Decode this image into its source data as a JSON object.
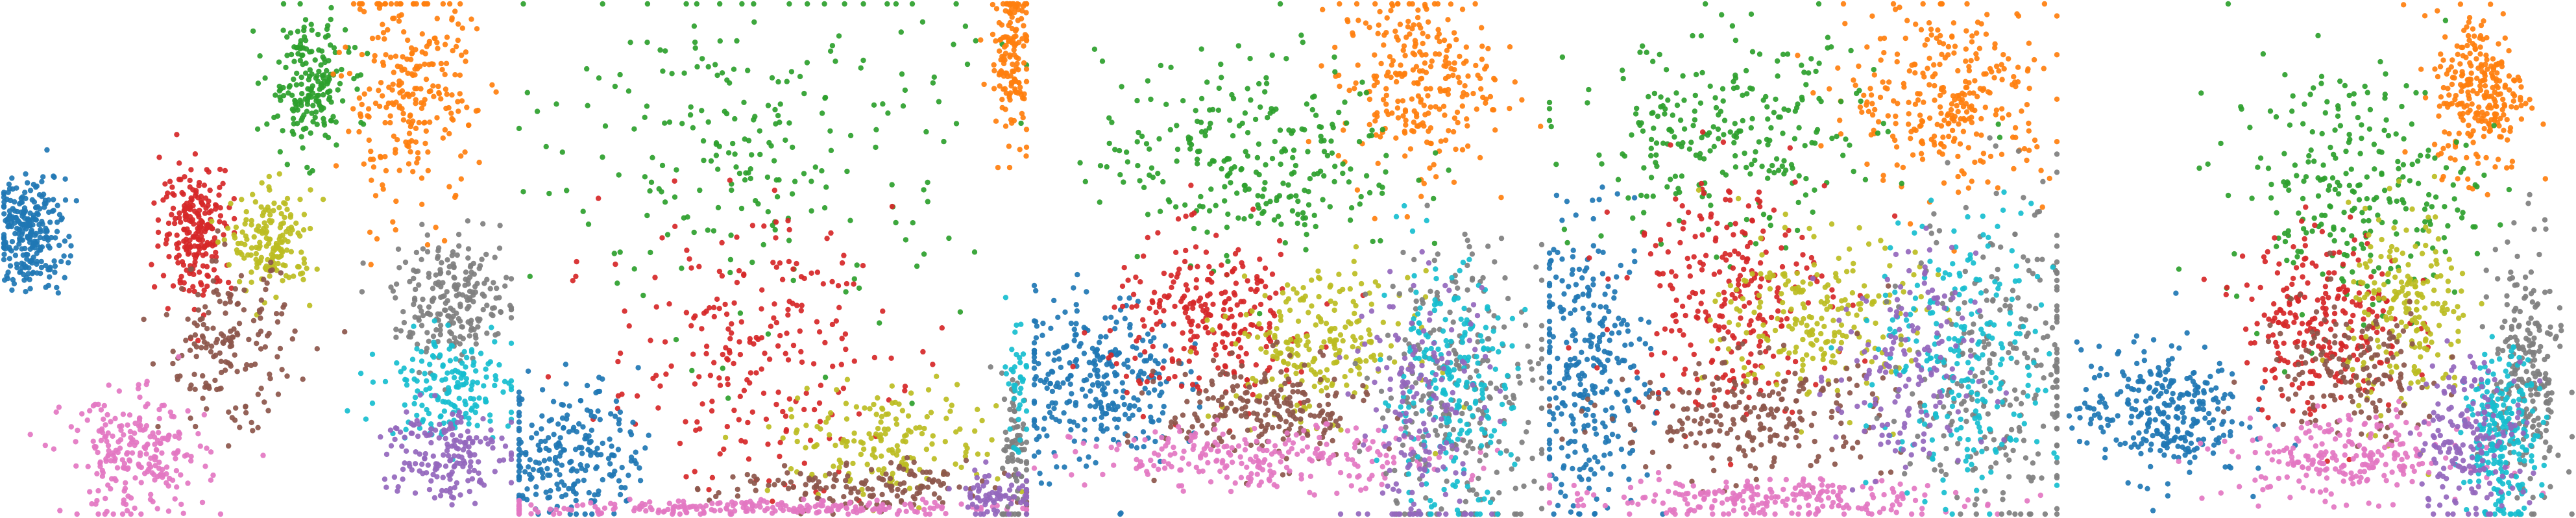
{
  "palette": {
    "blue": "#1f77b4",
    "orange": "#ff7f0e",
    "green": "#2ca02c",
    "red": "#d62728",
    "purple": "#9467bd",
    "brown": "#8c564b",
    "pink": "#e377c2",
    "gray": "#7f7f7f",
    "olive": "#bcbd22",
    "cyan": "#17becf"
  },
  "chart_data": [
    {
      "type": "scatter",
      "title": "",
      "xlabel": "",
      "ylabel": "",
      "grid": false,
      "axes": "hidden",
      "xlim": [
        0,
        100
      ],
      "ylim": [
        0,
        100
      ],
      "clusters": [
        {
          "color": "blue",
          "center": [
            5,
            55
          ],
          "spread": [
            3.5,
            5.5
          ],
          "n": 260
        },
        {
          "color": "green",
          "center": [
            60,
            84
          ],
          "spread": [
            4.0,
            6.5
          ],
          "n": 200
        },
        {
          "color": "orange",
          "center": [
            80,
            82
          ],
          "spread": [
            6.5,
            11.0
          ],
          "n": 260
        },
        {
          "color": "red",
          "center": [
            38,
            56
          ],
          "spread": [
            3.5,
            6.5
          ],
          "n": 230
        },
        {
          "color": "olive",
          "center": [
            53,
            53
          ],
          "spread": [
            4.0,
            5.0
          ],
          "n": 170
        },
        {
          "color": "brown",
          "center": [
            44,
            33
          ],
          "spread": [
            6.5,
            8.0
          ],
          "n": 170
        },
        {
          "color": "pink",
          "center": [
            26,
            11
          ],
          "spread": [
            7.0,
            6.0
          ],
          "n": 240
        },
        {
          "color": "gray",
          "center": [
            89,
            42
          ],
          "spread": [
            6.0,
            6.0
          ],
          "n": 220
        },
        {
          "color": "cyan",
          "center": [
            88,
            25
          ],
          "spread": [
            6.5,
            5.0
          ],
          "n": 170
        },
        {
          "color": "purple",
          "center": [
            86,
            12
          ],
          "spread": [
            6.0,
            5.0
          ],
          "n": 170
        }
      ]
    },
    {
      "type": "scatter",
      "title": "",
      "xlabel": "",
      "ylabel": "",
      "grid": false,
      "axes": "hidden",
      "xlim": [
        0,
        100
      ],
      "ylim": [
        0,
        100
      ],
      "clusters": [
        {
          "color": "green",
          "center": [
            48,
            72
          ],
          "spread": [
            20.0,
            18.0
          ],
          "n": 240
        },
        {
          "color": "orange",
          "center": [
            97,
            90
          ],
          "spread": [
            2.0,
            8.0
          ],
          "n": 150
        },
        {
          "color": "red",
          "center": [
            45,
            32
          ],
          "spread": [
            14.0,
            13.0
          ],
          "n": 230
        },
        {
          "color": "blue",
          "center": [
            10,
            12
          ],
          "spread": [
            7.0,
            7.0
          ],
          "n": 230
        },
        {
          "color": "olive",
          "center": [
            73,
            14
          ],
          "spread": [
            11.0,
            5.5
          ],
          "n": 170
        },
        {
          "color": "brown",
          "center": [
            68,
            5
          ],
          "spread": [
            14.0,
            2.5
          ],
          "n": 150
        },
        {
          "color": "pink",
          "center": [
            45,
            1.2
          ],
          "spread": [
            26.0,
            0.8
          ],
          "n": 230
        },
        {
          "color": "gray",
          "center": [
            98,
            12
          ],
          "spread": [
            1.5,
            8.0
          ],
          "n": 80
        },
        {
          "color": "purple",
          "center": [
            94,
            4
          ],
          "spread": [
            4.0,
            2.5
          ],
          "n": 70
        },
        {
          "color": "cyan",
          "center": [
            98,
            25
          ],
          "spread": [
            1.5,
            8.0
          ],
          "n": 40
        }
      ]
    },
    {
      "type": "scatter",
      "title": "",
      "xlabel": "",
      "ylabel": "",
      "grid": false,
      "axes": "hidden",
      "xlim": [
        0,
        100
      ],
      "ylim": [
        0,
        100
      ],
      "clusters": [
        {
          "color": "orange",
          "center": [
            75,
            85
          ],
          "spread": [
            7.5,
            9.0
          ],
          "n": 270
        },
        {
          "color": "green",
          "center": [
            43,
            70
          ],
          "spread": [
            15.0,
            10.0
          ],
          "n": 270
        },
        {
          "color": "blue",
          "center": [
            12,
            26
          ],
          "spread": [
            8.0,
            8.5
          ],
          "n": 290
        },
        {
          "color": "red",
          "center": [
            35,
            38
          ],
          "spread": [
            10.0,
            8.0
          ],
          "n": 260
        },
        {
          "color": "olive",
          "center": [
            56,
            33
          ],
          "spread": [
            9.0,
            7.0
          ],
          "n": 220
        },
        {
          "color": "brown",
          "center": [
            46,
            20
          ],
          "spread": [
            10.0,
            5.0
          ],
          "n": 210
        },
        {
          "color": "pink",
          "center": [
            45,
            11
          ],
          "spread": [
            18.0,
            3.0
          ],
          "n": 240
        },
        {
          "color": "gray",
          "center": [
            85,
            25
          ],
          "spread": [
            9.0,
            15.0
          ],
          "n": 260
        },
        {
          "color": "cyan",
          "center": [
            81,
            24
          ],
          "spread": [
            6.5,
            12.0
          ],
          "n": 230
        },
        {
          "color": "purple",
          "center": [
            77,
            20
          ],
          "spread": [
            7.0,
            14.0
          ],
          "n": 170
        }
      ]
    },
    {
      "type": "scatter",
      "title": "",
      "xlabel": "",
      "ylabel": "",
      "grid": false,
      "axes": "hidden",
      "xlim": [
        0,
        100
      ],
      "ylim": [
        0,
        100
      ],
      "clusters": [
        {
          "color": "orange",
          "center": [
            79,
            82
          ],
          "spread": [
            10.0,
            9.0
          ],
          "n": 300
        },
        {
          "color": "green",
          "center": [
            35,
            73
          ],
          "spread": [
            15.0,
            10.0
          ],
          "n": 260
        },
        {
          "color": "blue",
          "center": [
            8,
            28
          ],
          "spread": [
            6.0,
            14.0
          ],
          "n": 300
        },
        {
          "color": "red",
          "center": [
            35,
            44
          ],
          "spread": [
            10.0,
            12.0
          ],
          "n": 260
        },
        {
          "color": "olive",
          "center": [
            53,
            38
          ],
          "spread": [
            10.0,
            8.0
          ],
          "n": 220
        },
        {
          "color": "brown",
          "center": [
            40,
            19
          ],
          "spread": [
            14.0,
            6.0
          ],
          "n": 230
        },
        {
          "color": "pink",
          "center": [
            42,
            3
          ],
          "spread": [
            20.0,
            2.0
          ],
          "n": 230
        },
        {
          "color": "gray",
          "center": [
            89,
            30
          ],
          "spread": [
            9.0,
            17.0
          ],
          "n": 270
        },
        {
          "color": "cyan",
          "center": [
            82,
            30
          ],
          "spread": [
            9.0,
            14.0
          ],
          "n": 240
        },
        {
          "color": "purple",
          "center": [
            70,
            27
          ],
          "spread": [
            7.0,
            12.0
          ],
          "n": 160
        }
      ]
    },
    {
      "type": "scatter",
      "title": "",
      "xlabel": "",
      "ylabel": "",
      "grid": false,
      "axes": "hidden",
      "xlim": [
        0,
        100
      ],
      "ylim": [
        0,
        100
      ],
      "clusters": [
        {
          "color": "orange",
          "center": [
            82,
            83
          ],
          "spread": [
            4.5,
            8.0
          ],
          "n": 260
        },
        {
          "color": "green",
          "center": [
            56,
            64
          ],
          "spread": [
            12.0,
            12.0
          ],
          "n": 260
        },
        {
          "color": "blue",
          "center": [
            19,
            20
          ],
          "spread": [
            8.0,
            6.5
          ],
          "n": 290
        },
        {
          "color": "red",
          "center": [
            51,
            38
          ],
          "spread": [
            8.0,
            9.0
          ],
          "n": 250
        },
        {
          "color": "olive",
          "center": [
            68,
            39
          ],
          "spread": [
            6.0,
            10.0
          ],
          "n": 200
        },
        {
          "color": "brown",
          "center": [
            56,
            28
          ],
          "spread": [
            9.0,
            7.0
          ],
          "n": 150
        },
        {
          "color": "pink",
          "center": [
            56,
            11
          ],
          "spread": [
            12.0,
            4.0
          ],
          "n": 230
        },
        {
          "color": "gray",
          "center": [
            91,
            27
          ],
          "spread": [
            3.5,
            13.0
          ],
          "n": 230
        },
        {
          "color": "cyan",
          "center": [
            86,
            15
          ],
          "spread": [
            3.5,
            8.0
          ],
          "n": 230
        },
        {
          "color": "purple",
          "center": [
            80,
            15
          ],
          "spread": [
            5.5,
            8.0
          ],
          "n": 180
        }
      ]
    }
  ]
}
